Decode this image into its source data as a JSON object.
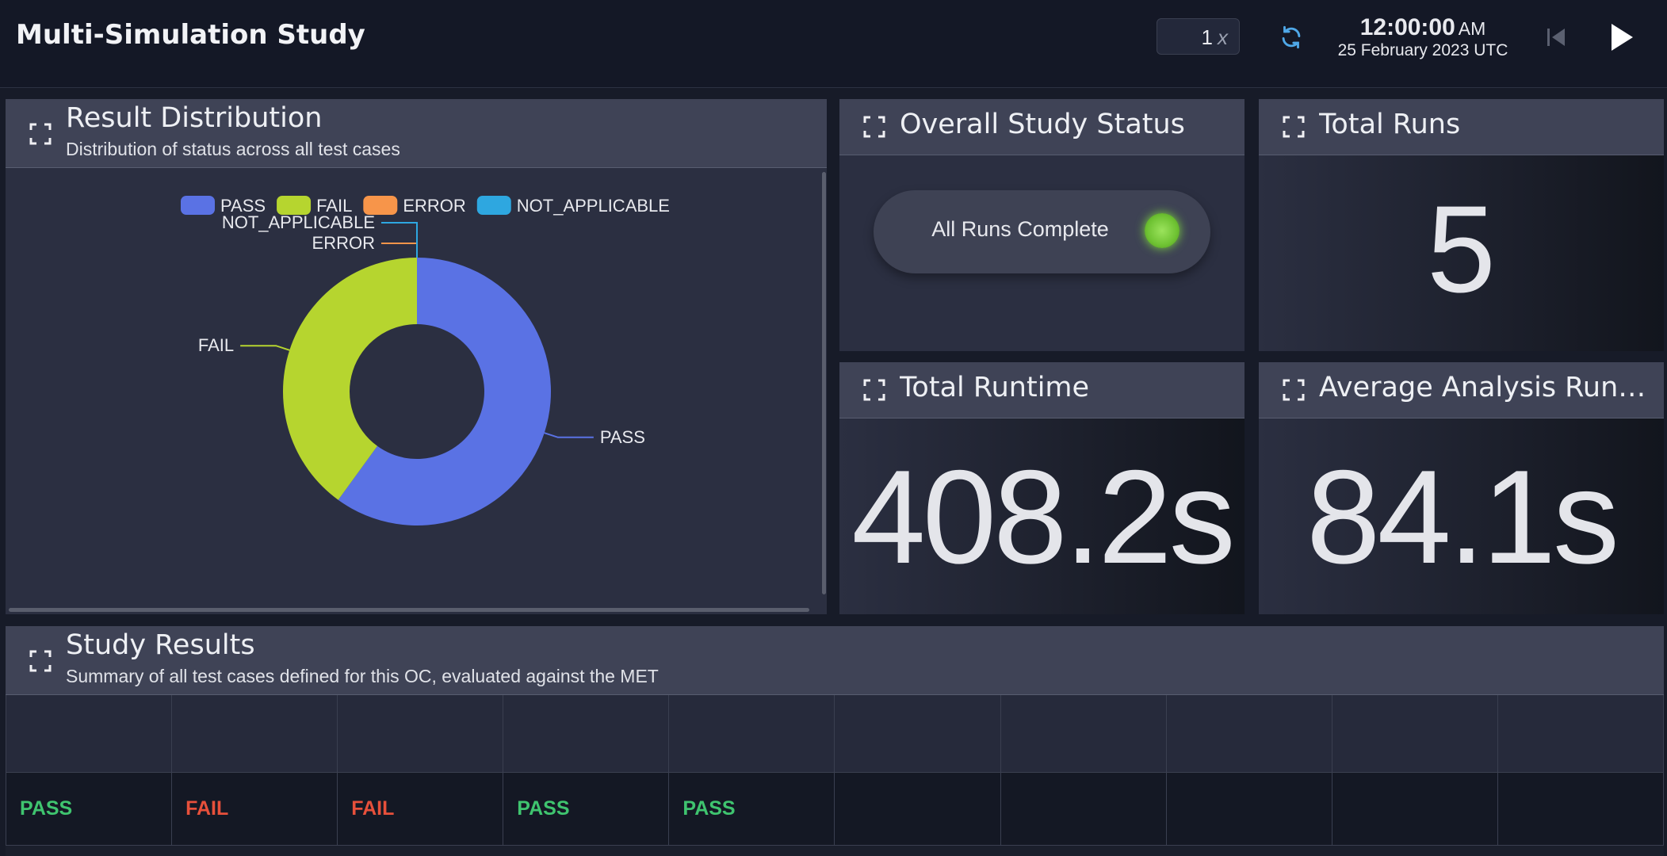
{
  "header": {
    "title": "Multi-Simulation Study",
    "speed": "1",
    "speed_unit": "x",
    "time": "12:00:00",
    "meridiem": "AM",
    "date": "25 February 2023 UTC"
  },
  "panels": {
    "result_distribution": {
      "title": "Result Distribution",
      "subtitle": "Distribution of status across all test cases"
    },
    "overall_status": {
      "title": "Overall Study Status",
      "status": "All Runs Complete"
    },
    "total_runs": {
      "title": "Total Runs",
      "value": 5
    },
    "total_runtime": {
      "title": "Total Runtime",
      "value": "408.2s"
    },
    "average_runtime": {
      "title": "Average Analysis Runtime",
      "value": "84.1s"
    },
    "study_results": {
      "title": "Study Results",
      "subtitle": "Summary of all test cases defined for this OC, evaluated against the MET",
      "results": [
        "PASS",
        "FAIL",
        "FAIL",
        "PASS",
        "PASS"
      ]
    }
  },
  "chart_data": {
    "type": "donut",
    "categories": [
      "PASS",
      "FAIL",
      "ERROR",
      "NOT_APPLICABLE"
    ],
    "values": [
      3,
      2,
      0,
      0
    ],
    "colors": [
      "#5a72e4",
      "#b6d52f",
      "#f7954a",
      "#2ea7e0"
    ],
    "legend": "top"
  }
}
